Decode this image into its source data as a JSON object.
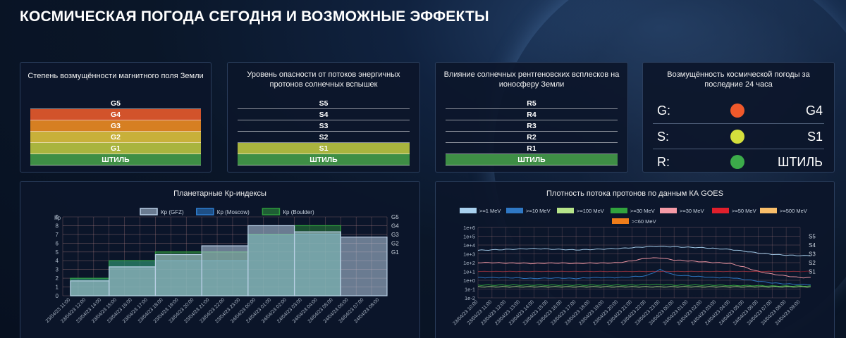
{
  "title": "КОСМИЧЕСКАЯ ПОГОДА СЕГОДНЯ И ВОЗМОЖНЫЕ ЭФФЕКТЫ",
  "panels": {
    "geomagnetic": {
      "title": "Степень возмущённости магнитного поля Земли",
      "rows": [
        {
          "label": "G5",
          "color": ""
        },
        {
          "label": "G4",
          "color": "#d2532b"
        },
        {
          "label": "G3",
          "color": "#d67f22"
        },
        {
          "label": "G2",
          "color": "#c8b03a"
        },
        {
          "label": "G1",
          "color": "#a9b43e"
        },
        {
          "label": "ШТИЛЬ",
          "color": "#3e8e45"
        }
      ]
    },
    "protons": {
      "title_line1": "Уровень опасности от потоков энергичных",
      "title_line2": "протонов солнечных вспышек",
      "rows": [
        {
          "label": "S5",
          "color": ""
        },
        {
          "label": "S4",
          "color": ""
        },
        {
          "label": "S3",
          "color": ""
        },
        {
          "label": "S2",
          "color": ""
        },
        {
          "label": "S1",
          "color": "#a9b43e"
        },
        {
          "label": "ШТИЛЬ",
          "color": "#3e8e45"
        }
      ]
    },
    "xray": {
      "title_line1": "Влияние солнечных рентгеновских всплесков на",
      "title_line2": "ионосферу Земли",
      "rows": [
        {
          "label": "R5",
          "color": ""
        },
        {
          "label": "R4",
          "color": ""
        },
        {
          "label": "R3",
          "color": ""
        },
        {
          "label": "R2",
          "color": ""
        },
        {
          "label": "R1",
          "color": ""
        },
        {
          "label": "ШТИЛЬ",
          "color": "#3e8e45"
        }
      ]
    },
    "summary": {
      "title_line1": "Возмущённость космической погоды за",
      "title_line2": "последние 24 часа",
      "rows": [
        {
          "letter": "G:",
          "value": "G4",
          "color": "#f0592b"
        },
        {
          "letter": "S:",
          "value": "S1",
          "color": "#d4df3c"
        },
        {
          "letter": "R:",
          "value": "ШТИЛЬ",
          "color": "#3cab4a"
        }
      ]
    }
  },
  "chart_data": [
    {
      "type": "area",
      "title": "Планетарные Кр-индексы",
      "ylabel": "Кр",
      "ylim": [
        0,
        9
      ],
      "yticks": [
        "0",
        "1",
        "2",
        "3",
        "4",
        "5",
        "6",
        "7",
        "8",
        "9"
      ],
      "right_labels": [
        "G5",
        "G4",
        "G3",
        "G2",
        "G1"
      ],
      "right_levels": [
        9,
        8,
        7,
        6,
        5
      ],
      "legend": [
        {
          "name": "Кр (GFZ)",
          "color": "#b9cfe6"
        },
        {
          "name": "Кр (Moscow)",
          "color": "#2f7fd0"
        },
        {
          "name": "Кр (Boulder)",
          "color": "#2f9a3c"
        }
      ],
      "x": [
        "23/04/23 11:00",
        "23/04/23 12:00",
        "23/04/23 14:00",
        "23/04/23 15:00",
        "23/04/23 16:00",
        "23/04/23 17:00",
        "23/04/23 18:00",
        "23/04/23 19:00",
        "23/04/23 20:00",
        "23/04/23 21:00",
        "23/04/23 22:00",
        "23/04/23 23:00",
        "24/04/23 00:00",
        "24/04/23 01:00",
        "24/04/23 02:00",
        "24/04/23 03:00",
        "24/04/23 04:00",
        "24/04/23 05:00",
        "24/04/23 06:00",
        "24/04/23 07:00",
        "24/04/23 08:00"
      ],
      "series": [
        {
          "name": "Кр (GFZ)",
          "values": [
            1.7,
            1.7,
            1.7,
            3.3,
            3.3,
            3.3,
            4.7,
            4.7,
            4.7,
            5.7,
            5.7,
            5.7,
            8.0,
            8.0,
            8.0,
            7.3,
            7.3,
            7.3,
            6.7,
            6.7,
            6.7
          ]
        },
        {
          "name": "Кр (Moscow)",
          "values": [
            2,
            2,
            2,
            4,
            4,
            4,
            4,
            4,
            4,
            4,
            4,
            4,
            7,
            7,
            7,
            7,
            7,
            7,
            null,
            null,
            null
          ]
        },
        {
          "name": "Кр (Boulder)",
          "values": [
            2,
            2,
            2,
            4,
            4,
            4,
            5,
            5,
            5,
            5,
            5,
            5,
            7,
            7,
            7,
            8,
            8,
            8,
            null,
            null,
            null
          ]
        }
      ]
    },
    {
      "type": "line",
      "title": "Плотность потока протонов по данным КА GOES",
      "ylim_log": [
        -2,
        6
      ],
      "yticks": [
        "1e-2",
        "1e-1",
        "1e+0",
        "1e+1",
        "1e+2",
        "1e+3",
        "1e+4",
        "1e+5",
        "1e+6"
      ],
      "right_labels": [
        "S5",
        "S4",
        "S3",
        "S2",
        "S1"
      ],
      "right_levels": [
        5,
        4,
        3,
        2,
        1
      ],
      "legend": [
        {
          "name": ">=1 MeV",
          "color": "#a8d0ee"
        },
        {
          "name": ">=10 MeV",
          "color": "#2f78c4"
        },
        {
          "name": ">=100 MeV",
          "color": "#b6e48a"
        },
        {
          "name": ">=30 MeV",
          "color": "#31a33d"
        },
        {
          "name": ">=30 MeV",
          "color": "#f59aa6"
        },
        {
          "name": ">=50 MeV",
          "color": "#e01f2c"
        },
        {
          "name": ">=500 MeV",
          "color": "#f9be6a"
        },
        {
          "name": ">=60 MeV",
          "color": "#f07d1a"
        }
      ],
      "x": [
        "23/04/23 10:00",
        "23/04/23 11:00",
        "23/04/23 12:00",
        "23/04/23 13:00",
        "23/04/23 14:00",
        "23/04/23 15:00",
        "23/04/23 16:00",
        "23/04/23 17:00",
        "23/04/23 18:00",
        "23/04/23 19:00",
        "23/04/23 20:00",
        "23/04/23 21:00",
        "23/04/23 22:00",
        "23/04/23 23:00",
        "24/04/23 00:00",
        "24/04/23 01:00",
        "24/04/23 02:00",
        "24/04/23 03:00",
        "24/04/23 04:00",
        "24/04/23 05:00",
        "24/04/23 06:00",
        "24/04/23 07:00",
        "24/04/23 08:00",
        "24/04/23 09:00"
      ],
      "series": [
        {
          "name": ">=1 MeV",
          "log_values": [
            3.4,
            3.45,
            3.5,
            3.55,
            3.6,
            3.55,
            3.5,
            3.45,
            3.5,
            3.55,
            3.6,
            3.7,
            3.8,
            3.85,
            3.8,
            3.75,
            3.7,
            3.6,
            3.5,
            3.3,
            3.1,
            2.95,
            2.85,
            2.8
          ]
        },
        {
          "name": ">=10 MeV",
          "log_values": [
            0.3,
            0.3,
            0.3,
            0.25,
            0.2,
            0.25,
            0.25,
            0.2,
            0.3,
            0.3,
            0.3,
            0.4,
            0.5,
            1.2,
            0.6,
            0.5,
            0.4,
            0.3,
            0.3,
            0.1,
            -0.1,
            -0.3,
            -0.4,
            -0.5
          ]
        },
        {
          "name": ">=100 MeV",
          "log_values": [
            -0.75,
            -0.75,
            -0.75,
            -0.75,
            -0.75,
            -0.75,
            -0.75,
            -0.75,
            -0.75,
            -0.75,
            -0.75,
            -0.75,
            -0.75,
            -0.75,
            -0.75,
            -0.75,
            -0.75,
            -0.75,
            -0.75,
            -0.75,
            -0.75,
            -0.75,
            -0.75,
            -0.75
          ]
        },
        {
          "name": ">=30 MeV",
          "log_values": [
            -0.55,
            -0.55,
            -0.55,
            -0.55,
            -0.55,
            -0.55,
            -0.55,
            -0.55,
            -0.55,
            -0.55,
            -0.55,
            -0.55,
            -0.5,
            -0.5,
            -0.55,
            -0.55,
            -0.55,
            -0.55,
            -0.6,
            -0.6,
            -0.6,
            -0.65,
            -0.65,
            -0.65
          ]
        },
        {
          "name": ">=30 MeV",
          "log_values": [
            2.0,
            2.0,
            1.95,
            1.95,
            1.9,
            1.95,
            1.95,
            1.9,
            1.95,
            1.95,
            2.0,
            2.2,
            2.5,
            2.55,
            2.3,
            2.2,
            2.1,
            2.0,
            1.9,
            1.5,
            1.0,
            0.7,
            0.5,
            0.3
          ]
        },
        {
          "name": ">=50 MeV",
          "log_values": [
            1.0,
            1.0,
            1.0,
            1.0,
            1.0,
            1.0,
            1.0,
            1.0,
            1.0,
            1.0,
            1.0,
            1.0,
            1.0,
            1.0,
            1.0,
            1.0,
            1.0,
            1.0,
            1.0,
            1.0,
            1.0,
            1.0,
            1.0,
            1.0
          ]
        }
      ]
    }
  ]
}
